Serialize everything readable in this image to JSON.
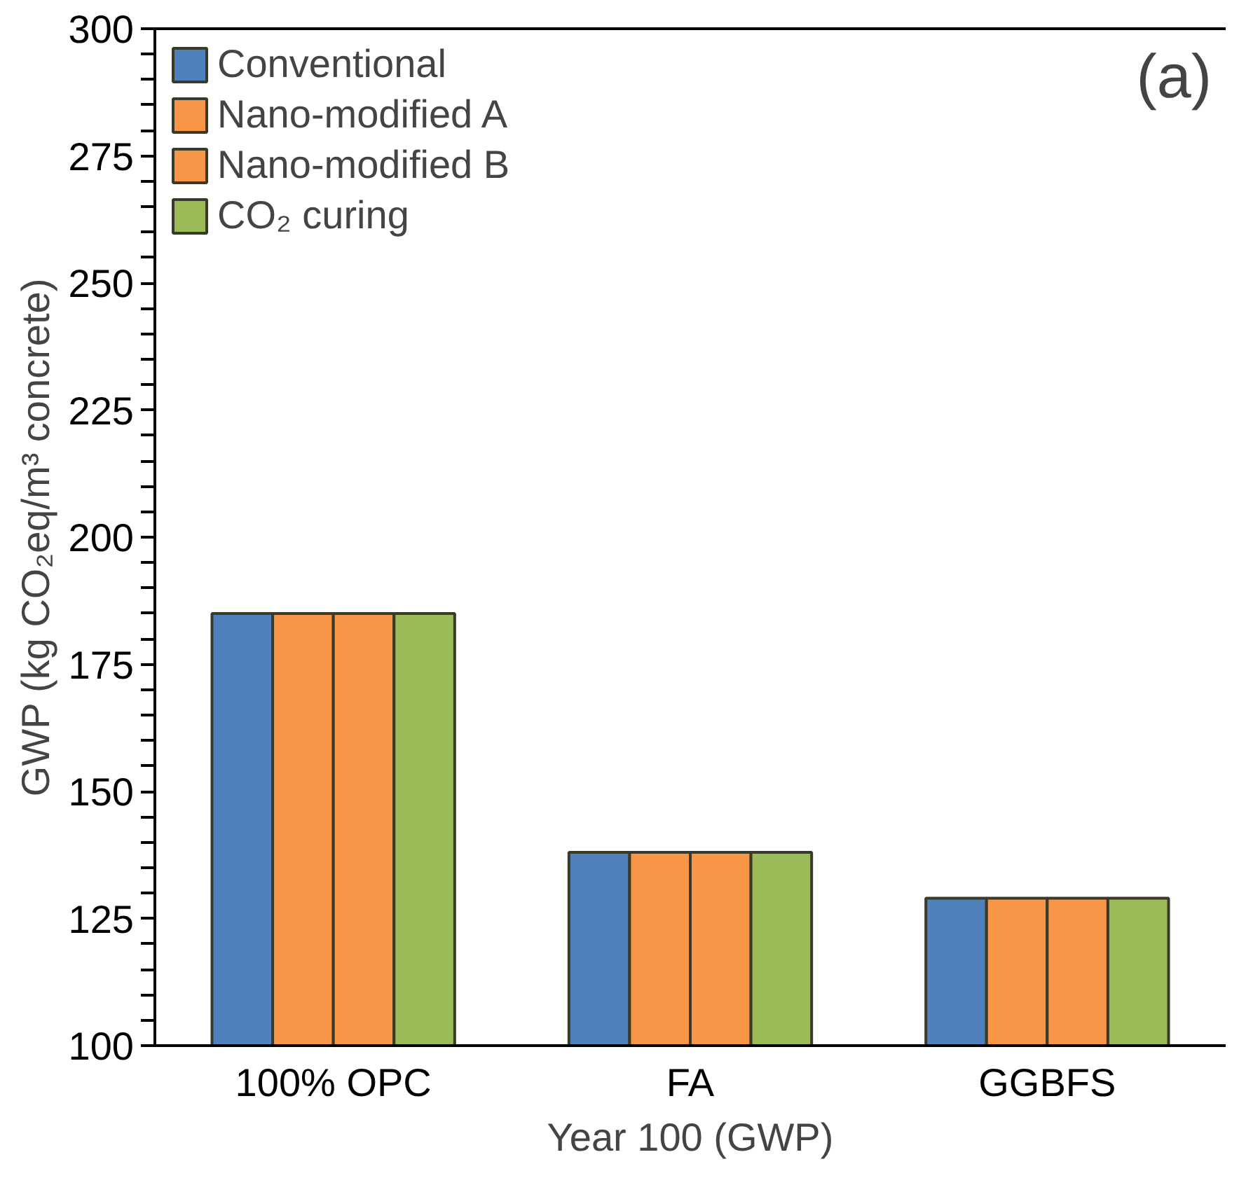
{
  "chart_data": {
    "type": "bar",
    "xlabel": "Year 100 (GWP)",
    "ylabel": "GWP (kg CO₂eq/m³ concrete)",
    "categories": [
      "100% OPC",
      "FA",
      "GGBFS"
    ],
    "series": [
      {
        "name": "Conventional",
        "color": "#4f81bd",
        "values": [
          185,
          138,
          129
        ]
      },
      {
        "name": "Nano-modified A",
        "color": "#f79646",
        "values": [
          185,
          138,
          129
        ]
      },
      {
        "name": "Nano-modified B",
        "color": "#f79646",
        "values": [
          185,
          138,
          129
        ]
      },
      {
        "name": "CO₂ curing",
        "color": "#9bbb59",
        "values": [
          185,
          138,
          129
        ]
      }
    ],
    "ylim": [
      100,
      300
    ],
    "yticks": [
      100,
      {
        "value": 105,
        "label": null
      },
      {
        "value": 110,
        "label": null
      },
      {
        "value": 115,
        "label": null
      },
      {
        "value": 120,
        "label": null
      },
      125,
      {
        "value": 130,
        "label": null
      },
      {
        "value": 135,
        "label": null
      },
      {
        "value": 140,
        "label": null
      },
      {
        "value": 145,
        "label": null
      },
      150,
      {
        "value": 155,
        "label": null
      },
      {
        "value": 160,
        "label": null
      },
      {
        "value": 165,
        "label": null
      },
      {
        "value": 170,
        "label": null
      },
      175,
      {
        "value": 180,
        "label": null
      },
      {
        "value": 185,
        "label": null
      },
      {
        "value": 190,
        "label": null
      },
      {
        "value": 195,
        "label": null
      },
      200,
      {
        "value": 205,
        "label": null
      },
      {
        "value": 210,
        "label": null
      },
      {
        "value": 215,
        "label": null
      },
      {
        "value": 220,
        "label": null
      },
      225,
      {
        "value": 230,
        "label": null
      },
      {
        "value": 235,
        "label": null
      },
      {
        "value": 240,
        "label": null
      },
      {
        "value": 245,
        "label": null
      },
      250,
      {
        "value": 255,
        "label": null
      },
      {
        "value": 260,
        "label": null
      },
      {
        "value": 265,
        "label": null
      },
      {
        "value": 270,
        "label": null
      },
      275,
      {
        "value": 280,
        "label": null
      },
      {
        "value": 285,
        "label": null
      },
      {
        "value": 290,
        "label": null
      },
      {
        "value": 295,
        "label": null
      },
      300
    ],
    "grid": false,
    "legend": "top left",
    "annotations": [
      "(a)"
    ]
  }
}
